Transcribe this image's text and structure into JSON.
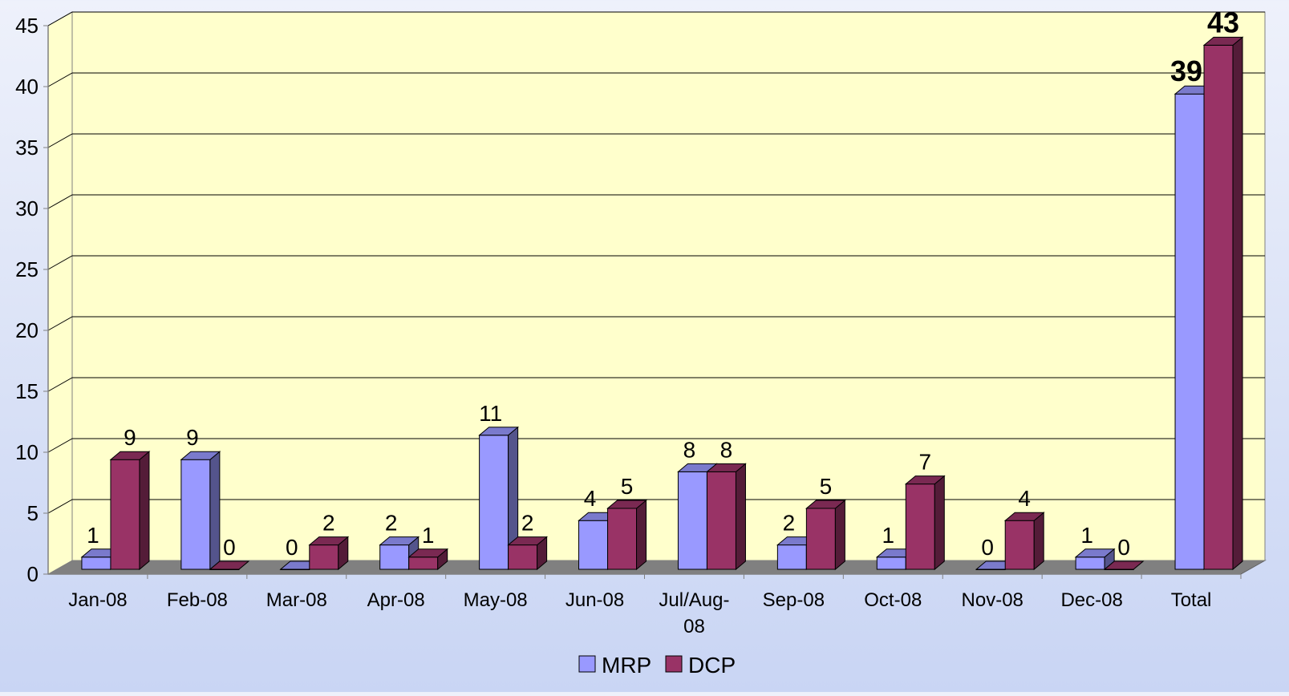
{
  "chart_data": {
    "type": "bar",
    "title": "",
    "xlabel": "",
    "ylabel": "",
    "ylim": [
      0,
      45
    ],
    "y_ticks": [
      "0",
      "5",
      "10",
      "15",
      "20",
      "25",
      "30",
      "35",
      "40",
      "45"
    ],
    "grid": true,
    "legend_position": "bottom-center",
    "categories": [
      "Jan-08",
      "Feb-08",
      "Mar-08",
      "Apr-08",
      "May-08",
      "Jun-08",
      "Jul/Aug-08",
      "Sep-08",
      "Oct-08",
      "Nov-08",
      "Dec-08",
      "Total"
    ],
    "series": [
      {
        "name": "MRP",
        "values": [
          1,
          9,
          0,
          2,
          11,
          4,
          8,
          2,
          1,
          0,
          1,
          39
        ],
        "color": "#9999ff"
      },
      {
        "name": "DCP",
        "values": [
          9,
          0,
          2,
          1,
          2,
          5,
          8,
          5,
          7,
          4,
          0,
          43
        ],
        "color": "#993366"
      }
    ]
  }
}
